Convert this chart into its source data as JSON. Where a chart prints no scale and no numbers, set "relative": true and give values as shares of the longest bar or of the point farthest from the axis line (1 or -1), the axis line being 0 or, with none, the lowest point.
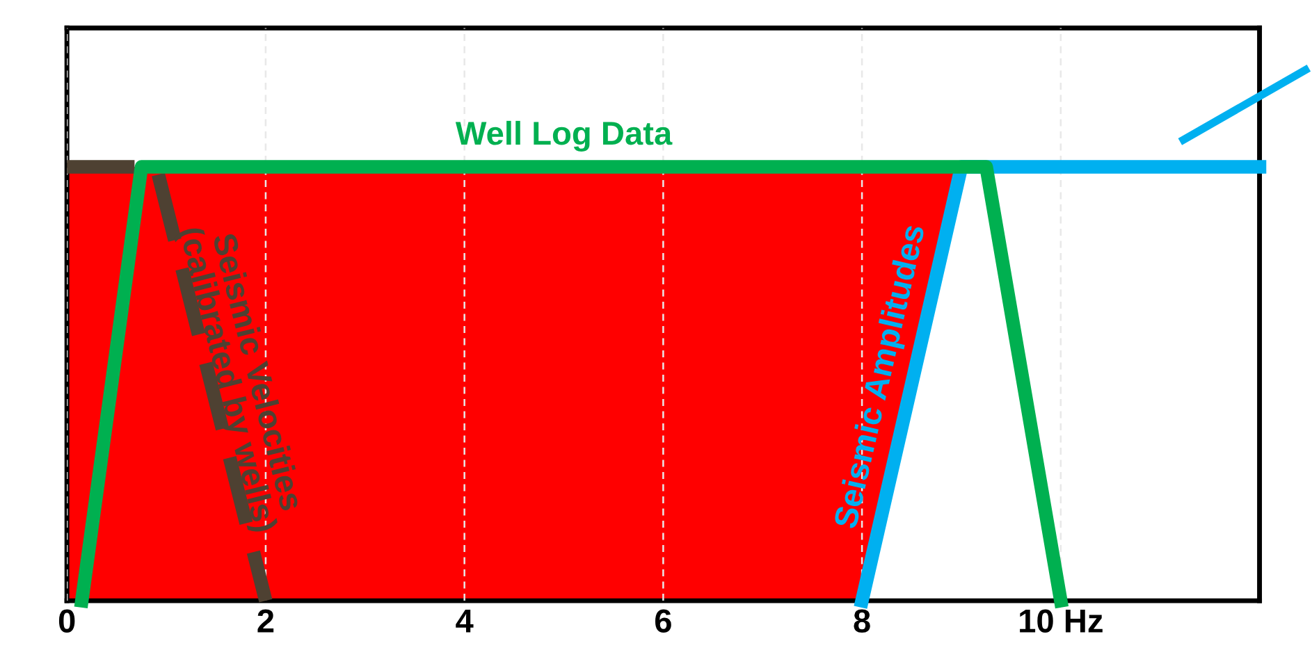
{
  "chart_data": {
    "type": "line",
    "relative": true,
    "xlim": [
      0,
      12
    ],
    "xticks": [
      0,
      2,
      4,
      6,
      8,
      {
        "value": 10,
        "label": "10 Hz"
      }
    ],
    "grid": "x",
    "tick_labels": "x",
    "series": [
      {
        "type": "area",
        "color": "#ff0000",
        "x": [
          0,
          9,
          8
        ],
        "values": [
          1,
          1,
          0
        ]
      },
      {
        "name": "Seismic Velocities\n(calibrated by wells)",
        "color": "#4e4132",
        "line_style": "dashed",
        "x": [
          0,
          0.9,
          2.0
        ],
        "values": [
          1,
          1,
          0
        ]
      },
      {
        "name": "Seismic Amplitudes",
        "color": "#00b0f0",
        "x": [
          8,
          9,
          12
        ],
        "values": [
          0,
          1,
          1
        ]
      },
      {
        "name": "Well Log Data",
        "color": "#00b050",
        "x": [
          0.15,
          0.75,
          9.25,
          10.0
        ],
        "values": [
          0,
          1,
          1,
          0
        ]
      }
    ]
  }
}
